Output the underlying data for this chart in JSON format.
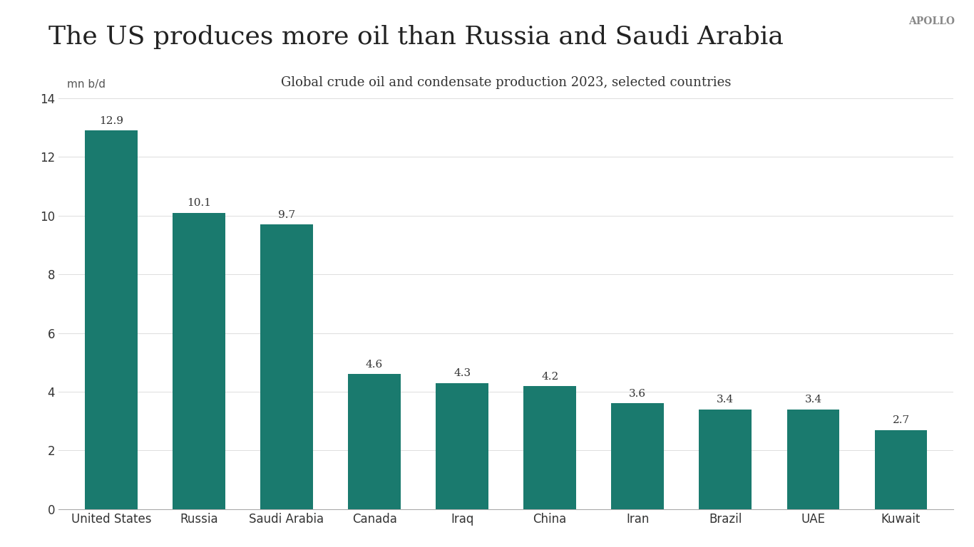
{
  "title": "The US produces more oil than Russia and Saudi Arabia",
  "subtitle": "Global crude oil and condensate production 2023, selected countries",
  "ylabel": "mn b/d",
  "watermark": "APOLLO",
  "categories": [
    "United States",
    "Russia",
    "Saudi Arabia",
    "Canada",
    "Iraq",
    "China",
    "Iran",
    "Brazil",
    "UAE",
    "Kuwait"
  ],
  "values": [
    12.9,
    10.1,
    9.7,
    4.6,
    4.3,
    4.2,
    3.6,
    3.4,
    3.4,
    2.7
  ],
  "bar_color": "#1a7a6e",
  "background_color": "#ffffff",
  "ylim": [
    0,
    14
  ],
  "yticks": [
    0,
    2,
    4,
    6,
    8,
    10,
    12,
    14
  ],
  "title_fontsize": 26,
  "subtitle_fontsize": 13,
  "label_fontsize": 11,
  "tick_fontsize": 12,
  "ylabel_fontsize": 11,
  "watermark_fontsize": 10
}
